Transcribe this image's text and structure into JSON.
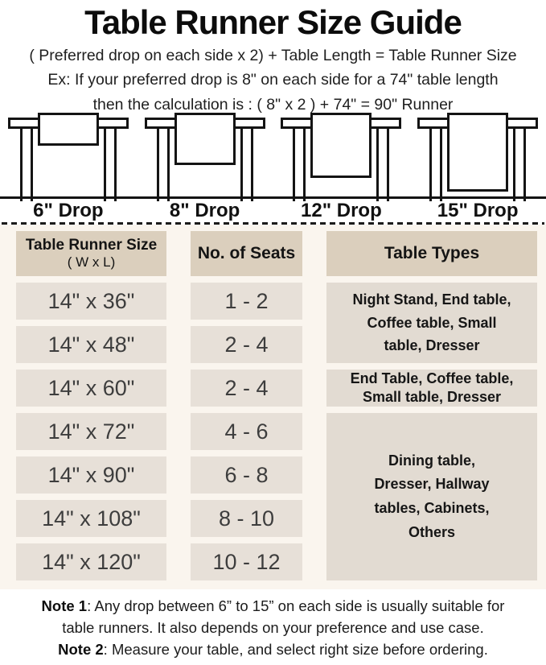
{
  "page": {
    "title": "Table Runner Size Guide",
    "formula": "( Preferred drop on each side x 2) + Table Length = Table Runner Size",
    "example_line1": "Ex: If your preferred drop is 8\" on each side for a 74\" table length",
    "example_line2": "then the calculation is : ( 8\" x 2 ) + 74\" = 90\" Runner"
  },
  "drops": [
    {
      "label": "6\" Drop"
    },
    {
      "label": "8\" Drop"
    },
    {
      "label": "12\" Drop"
    },
    {
      "label": "15\" Drop"
    }
  ],
  "size_table": {
    "header": {
      "col1_title": "Table Runner Size",
      "col1_sub": "( W x L)",
      "col2": "No. of Seats",
      "col3": "Table Types"
    },
    "rows": [
      {
        "size": "14\" x 36\"",
        "seats": "1 - 2"
      },
      {
        "size": "14\" x 48\"",
        "seats": "2 - 4"
      },
      {
        "size": "14\" x 60\"",
        "seats": "2 - 4"
      },
      {
        "size": "14\" x 72\"",
        "seats": "4 - 6"
      },
      {
        "size": "14\" x 90\"",
        "seats": "6 - 8"
      },
      {
        "size": "14\" x 108\"",
        "seats": "8 - 10"
      },
      {
        "size": "14\" x 120\"",
        "seats": "10 - 12"
      }
    ],
    "table_types": [
      {
        "rows_covered": "14\" x 36\" – 14\" x 48\"",
        "text": "Night Stand, End table,\nCoffee table, Small\ntable, Dresser"
      },
      {
        "rows_covered": "14\" x 60\"",
        "text": "End Table, Coffee table,\nSmall table, Dresser"
      },
      {
        "rows_covered": "14\" x 72\" – 14\" x 120\"",
        "text": "Dining table,\nDresser, Hallway\ntables, Cabinets,\nOthers"
      }
    ]
  },
  "notes": [
    {
      "label": "Note 1",
      "text": ": Any drop between 6” to 15” on each side is usually suitable for\ntable runners. It also depends on your preference and use case."
    },
    {
      "label": "Note 2",
      "text": ": Measure your table, and select right size before ordering."
    }
  ],
  "colors": {
    "header_cell": "#dbcfbd",
    "body_cell": "#e7e0d8",
    "types_cell": "#e2dbd2",
    "section_bg": "#faf5ee",
    "line": "#141414"
  }
}
